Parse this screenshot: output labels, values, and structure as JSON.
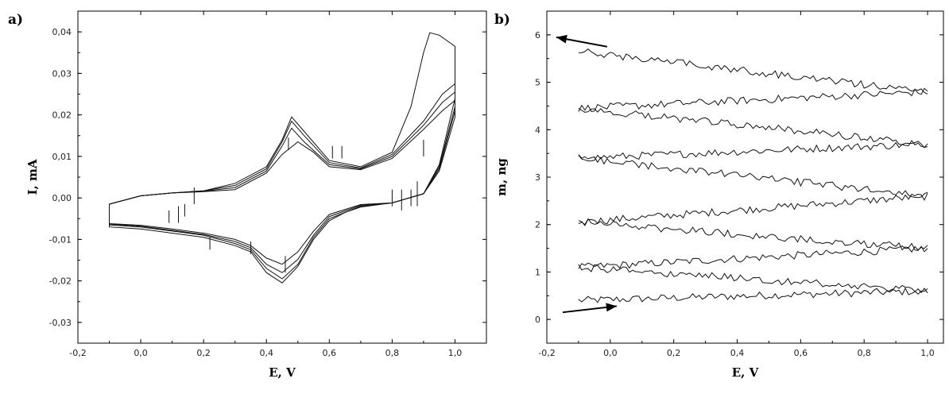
{
  "chart_data": [
    {
      "panel_label": "a)",
      "type": "line",
      "xlabel": "E, V",
      "ylabel": "I, mA",
      "xlim": [
        -0.2,
        1.1
      ],
      "ylim": [
        -0.035,
        0.045
      ],
      "xticks": [
        "-0,2",
        "0,0",
        "0,2",
        "0,4",
        "0,6",
        "0,8",
        "1,0"
      ],
      "xtick_values": [
        -0.2,
        0.0,
        0.2,
        0.4,
        0.6,
        0.8,
        1.0
      ],
      "yticks": [
        "-0,03",
        "-0,02",
        "-0,01",
        "0,00",
        "0,01",
        "0,02",
        "0,03",
        "0,04"
      ],
      "ytick_values": [
        -0.03,
        -0.02,
        -0.01,
        0.0,
        0.01,
        0.02,
        0.03,
        0.04
      ],
      "grid": false,
      "series": [
        {
          "anodic": [
            [
              -0.1,
              -0.0015
            ],
            [
              0.0,
              0.0005
            ],
            [
              0.1,
              0.0012
            ],
            [
              0.2,
              0.0017
            ],
            [
              0.3,
              0.0035
            ],
            [
              0.4,
              0.0075
            ],
            [
              0.45,
              0.014
            ],
            [
              0.48,
              0.0195
            ],
            [
              0.52,
              0.016
            ],
            [
              0.6,
              0.009
            ],
            [
              0.7,
              0.0075
            ],
            [
              0.8,
              0.011
            ],
            [
              0.86,
              0.022
            ],
            [
              0.9,
              0.035
            ],
            [
              0.92,
              0.0398
            ],
            [
              0.95,
              0.0392
            ],
            [
              1.0,
              0.0365
            ]
          ],
          "cathodic": [
            [
              1.0,
              0.0365
            ],
            [
              1.0,
              0.024
            ],
            [
              0.95,
              0.008
            ],
            [
              0.9,
              0.001
            ],
            [
              0.8,
              -0.0012
            ],
            [
              0.7,
              -0.0022
            ],
            [
              0.65,
              -0.0035
            ],
            [
              0.6,
              -0.0055
            ],
            [
              0.55,
              -0.01
            ],
            [
              0.5,
              -0.0165
            ],
            [
              0.45,
              -0.0205
            ],
            [
              0.4,
              -0.018
            ],
            [
              0.35,
              -0.013
            ],
            [
              0.3,
              -0.0115
            ],
            [
              0.2,
              -0.0095
            ],
            [
              0.1,
              -0.0085
            ],
            [
              0.0,
              -0.0075
            ],
            [
              -0.1,
              -0.007
            ],
            [
              -0.1,
              -0.0015
            ]
          ]
        },
        {
          "anodic": [
            [
              -0.1,
              -0.0015
            ],
            [
              0.0,
              0.0005
            ],
            [
              0.1,
              0.0012
            ],
            [
              0.2,
              0.0017
            ],
            [
              0.3,
              0.003
            ],
            [
              0.4,
              0.007
            ],
            [
              0.45,
              0.0135
            ],
            [
              0.48,
              0.0185
            ],
            [
              0.52,
              0.015
            ],
            [
              0.6,
              0.0085
            ],
            [
              0.7,
              0.0072
            ],
            [
              0.8,
              0.0105
            ],
            [
              0.9,
              0.0185
            ],
            [
              0.96,
              0.025
            ],
            [
              1.0,
              0.0275
            ]
          ],
          "cathodic": [
            [
              1.0,
              0.0275
            ],
            [
              1.0,
              0.022
            ],
            [
              0.95,
              0.0075
            ],
            [
              0.9,
              0.001
            ],
            [
              0.8,
              -0.0012
            ],
            [
              0.7,
              -0.002
            ],
            [
              0.6,
              -0.005
            ],
            [
              0.55,
              -0.0095
            ],
            [
              0.5,
              -0.016
            ],
            [
              0.45,
              -0.0195
            ],
            [
              0.4,
              -0.017
            ],
            [
              0.35,
              -0.0125
            ],
            [
              0.3,
              -0.011
            ],
            [
              0.2,
              -0.009
            ],
            [
              0.1,
              -0.008
            ],
            [
              0.0,
              -0.007
            ],
            [
              -0.1,
              -0.0065
            ],
            [
              -0.1,
              -0.0015
            ]
          ]
        },
        {
          "anodic": [
            [
              -0.1,
              -0.0015
            ],
            [
              0.0,
              0.0005
            ],
            [
              0.1,
              0.0012
            ],
            [
              0.2,
              0.0016
            ],
            [
              0.3,
              0.0025
            ],
            [
              0.4,
              0.0065
            ],
            [
              0.45,
              0.0125
            ],
            [
              0.48,
              0.0168
            ],
            [
              0.52,
              0.0135
            ],
            [
              0.6,
              0.008
            ],
            [
              0.7,
              0.007
            ],
            [
              0.8,
              0.01
            ],
            [
              0.9,
              0.0175
            ],
            [
              0.96,
              0.023
            ],
            [
              1.0,
              0.0255
            ]
          ],
          "cathodic": [
            [
              1.0,
              0.0255
            ],
            [
              1.0,
              0.021
            ],
            [
              0.95,
              0.007
            ],
            [
              0.9,
              0.001
            ],
            [
              0.8,
              -0.0012
            ],
            [
              0.7,
              -0.0018
            ],
            [
              0.6,
              -0.0045
            ],
            [
              0.55,
              -0.009
            ],
            [
              0.5,
              -0.0148
            ],
            [
              0.45,
              -0.018
            ],
            [
              0.4,
              -0.016
            ],
            [
              0.35,
              -0.012
            ],
            [
              0.3,
              -0.0105
            ],
            [
              0.2,
              -0.0088
            ],
            [
              0.1,
              -0.0078
            ],
            [
              0.0,
              -0.0068
            ],
            [
              -0.1,
              -0.0063
            ],
            [
              -0.1,
              -0.0015
            ]
          ]
        },
        {
          "anodic": [
            [
              -0.1,
              -0.0015
            ],
            [
              0.0,
              0.0005
            ],
            [
              0.1,
              0.0012
            ],
            [
              0.2,
              0.0015
            ],
            [
              0.3,
              0.002
            ],
            [
              0.4,
              0.006
            ],
            [
              0.45,
              0.0105
            ],
            [
              0.5,
              0.0135
            ],
            [
              0.55,
              0.011
            ],
            [
              0.6,
              0.0075
            ],
            [
              0.7,
              0.0068
            ],
            [
              0.8,
              0.0095
            ],
            [
              0.9,
              0.0165
            ],
            [
              0.96,
              0.021
            ],
            [
              1.0,
              0.0235
            ]
          ],
          "cathodic": [
            [
              1.0,
              0.0235
            ],
            [
              1.0,
              0.0195
            ],
            [
              0.95,
              0.0065
            ],
            [
              0.9,
              0.001
            ],
            [
              0.8,
              -0.0012
            ],
            [
              0.7,
              -0.0016
            ],
            [
              0.6,
              -0.004
            ],
            [
              0.55,
              -0.008
            ],
            [
              0.5,
              -0.013
            ],
            [
              0.45,
              -0.016
            ],
            [
              0.4,
              -0.0145
            ],
            [
              0.35,
              -0.0115
            ],
            [
              0.3,
              -0.01
            ],
            [
              0.2,
              -0.0085
            ],
            [
              0.1,
              -0.0075
            ],
            [
              0.0,
              -0.0066
            ],
            [
              -0.1,
              -0.0062
            ],
            [
              -0.1,
              -0.0015
            ]
          ]
        }
      ]
    },
    {
      "panel_label": "b)",
      "type": "line",
      "xlabel": "E, V",
      "ylabel": "m, ng",
      "xlim": [
        -0.2,
        1.05
      ],
      "ylim": [
        -0.5,
        6.5
      ],
      "xticks": [
        "-0,2",
        "0,0",
        "0,2",
        "0,4",
        "0,6",
        "0,8",
        "1,0"
      ],
      "xtick_values": [
        -0.2,
        0.0,
        0.2,
        0.4,
        0.6,
        0.8,
        1.0
      ],
      "yticks": [
        "0",
        "1",
        "2",
        "3",
        "4",
        "5",
        "6"
      ],
      "ytick_values": [
        0,
        1,
        2,
        3,
        4,
        5,
        6
      ],
      "grid": false,
      "segments": [
        {
          "x": [
            -0.1,
            1.0
          ],
          "y": [
            0.4,
            0.6
          ]
        },
        {
          "x": [
            1.0,
            -0.1
          ],
          "y": [
            0.6,
            1.1
          ]
        },
        {
          "x": [
            -0.1,
            1.0
          ],
          "y": [
            1.1,
            1.5
          ]
        },
        {
          "x": [
            1.0,
            -0.1
          ],
          "y": [
            1.5,
            2.05
          ]
        },
        {
          "x": [
            -0.1,
            1.0
          ],
          "y": [
            2.05,
            2.6
          ]
        },
        {
          "x": [
            1.0,
            -0.1
          ],
          "y": [
            2.6,
            3.4
          ]
        },
        {
          "x": [
            -0.1,
            1.0
          ],
          "y": [
            3.4,
            3.7
          ]
        },
        {
          "x": [
            1.0,
            -0.1
          ],
          "y": [
            3.7,
            4.45
          ]
        },
        {
          "x": [
            -0.1,
            1.0
          ],
          "y": [
            4.45,
            4.8
          ]
        },
        {
          "x": [
            1.0,
            -0.1
          ],
          "y": [
            4.8,
            5.65
          ]
        }
      ],
      "arrows": [
        {
          "from": [
            -0.15,
            0.15
          ],
          "to": [
            0.02,
            0.28
          ]
        },
        {
          "from": [
            -0.01,
            5.75
          ],
          "to": [
            -0.17,
            5.95
          ]
        }
      ]
    }
  ]
}
